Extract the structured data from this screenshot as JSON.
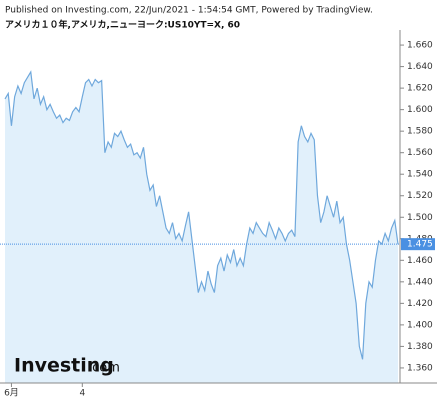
{
  "chart_data": {
    "type": "area",
    "title": "アメリカ１０年,アメリカ,ニューヨーク:US10YT=X, 60",
    "subtitle": "Published on Investing.com, 22/Jun/2021 - 1:54:54 GMT, Powered by TradingView.",
    "watermark": {
      "name": "Investing",
      "suffix": ".com"
    },
    "color": "#6fa8dc",
    "fill": "#e1f0fb",
    "last_value": 1.475,
    "last_color": "#4a90e2",
    "ylim": [
      1.346,
      1.674
    ],
    "yticks": [
      {
        "value": 1.36,
        "label": "1.360"
      },
      {
        "value": 1.38,
        "label": "1.380"
      },
      {
        "value": 1.4,
        "label": "1.400"
      },
      {
        "value": 1.42,
        "label": "1.420"
      },
      {
        "value": 1.44,
        "label": "1.440"
      },
      {
        "value": 1.46,
        "label": "1.460"
      },
      {
        "value": 1.48,
        "label": "1.480"
      },
      {
        "value": 1.5,
        "label": "1.500"
      },
      {
        "value": 1.52,
        "label": "1.520"
      },
      {
        "value": 1.54,
        "label": "1.540"
      },
      {
        "value": 1.56,
        "label": "1.560"
      },
      {
        "value": 1.58,
        "label": "1.580"
      },
      {
        "value": 1.6,
        "label": "1.600"
      },
      {
        "value": 1.62,
        "label": "1.620"
      },
      {
        "value": 1.64,
        "label": "1.640"
      },
      {
        "value": 1.66,
        "label": "1.660"
      }
    ],
    "categories": [
      null,
      null,
      "6月",
      null,
      null,
      null,
      null,
      null,
      null,
      null,
      null,
      null,
      null,
      null,
      null,
      null,
      null,
      null,
      null,
      null,
      null,
      null,
      null,
      null,
      "4",
      null,
      null,
      null,
      null,
      null,
      null,
      null,
      null,
      null,
      null,
      null,
      null,
      null,
      null,
      null,
      null,
      null,
      null,
      null,
      null,
      null,
      null,
      null,
      null,
      null,
      null,
      null,
      null,
      null,
      null,
      null,
      null,
      null,
      null,
      null,
      null,
      null,
      null,
      null,
      null,
      null,
      null,
      null,
      null,
      null,
      null,
      null,
      null,
      null,
      null,
      null,
      null,
      null,
      null,
      null,
      null,
      null,
      null,
      null,
      null,
      null,
      null,
      null,
      null,
      null,
      null,
      null,
      null,
      null,
      null,
      null,
      null,
      null,
      null,
      null,
      null,
      null,
      null,
      null,
      null,
      null,
      null,
      null,
      null,
      null,
      null,
      null,
      null,
      null,
      null,
      null,
      null,
      null,
      null,
      null,
      null,
      null,
      null
    ],
    "values": [
      1.61,
      1.615,
      1.585,
      1.612,
      1.622,
      1.615,
      1.625,
      1.63,
      1.635,
      1.61,
      1.62,
      1.605,
      1.612,
      1.6,
      1.605,
      1.598,
      1.592,
      1.595,
      1.588,
      1.592,
      1.59,
      1.598,
      1.602,
      1.598,
      1.612,
      1.625,
      1.628,
      1.622,
      1.628,
      1.625,
      1.627,
      1.56,
      1.57,
      1.565,
      1.578,
      1.575,
      1.58,
      1.572,
      1.565,
      1.568,
      1.558,
      1.56,
      1.555,
      1.565,
      1.54,
      1.525,
      1.53,
      1.51,
      1.52,
      1.505,
      1.49,
      1.485,
      1.495,
      1.48,
      1.485,
      1.478,
      1.492,
      1.505,
      1.48,
      1.455,
      1.43,
      1.44,
      1.432,
      1.45,
      1.438,
      1.43,
      1.455,
      1.462,
      1.45,
      1.465,
      1.458,
      1.47,
      1.455,
      1.462,
      1.455,
      1.475,
      1.49,
      1.485,
      1.495,
      1.49,
      1.485,
      1.482,
      1.495,
      1.488,
      1.48,
      1.49,
      1.485,
      1.478,
      1.485,
      1.488,
      1.482,
      1.57,
      1.585,
      1.575,
      1.57,
      1.578,
      1.572,
      1.52,
      1.495,
      1.505,
      1.52,
      1.51,
      1.5,
      1.515,
      1.495,
      1.5,
      1.475,
      1.46,
      1.44,
      1.42,
      1.38,
      1.368,
      1.42,
      1.44,
      1.435,
      1.46,
      1.478,
      1.475,
      1.485,
      1.478,
      1.49,
      1.497,
      1.475
    ]
  }
}
